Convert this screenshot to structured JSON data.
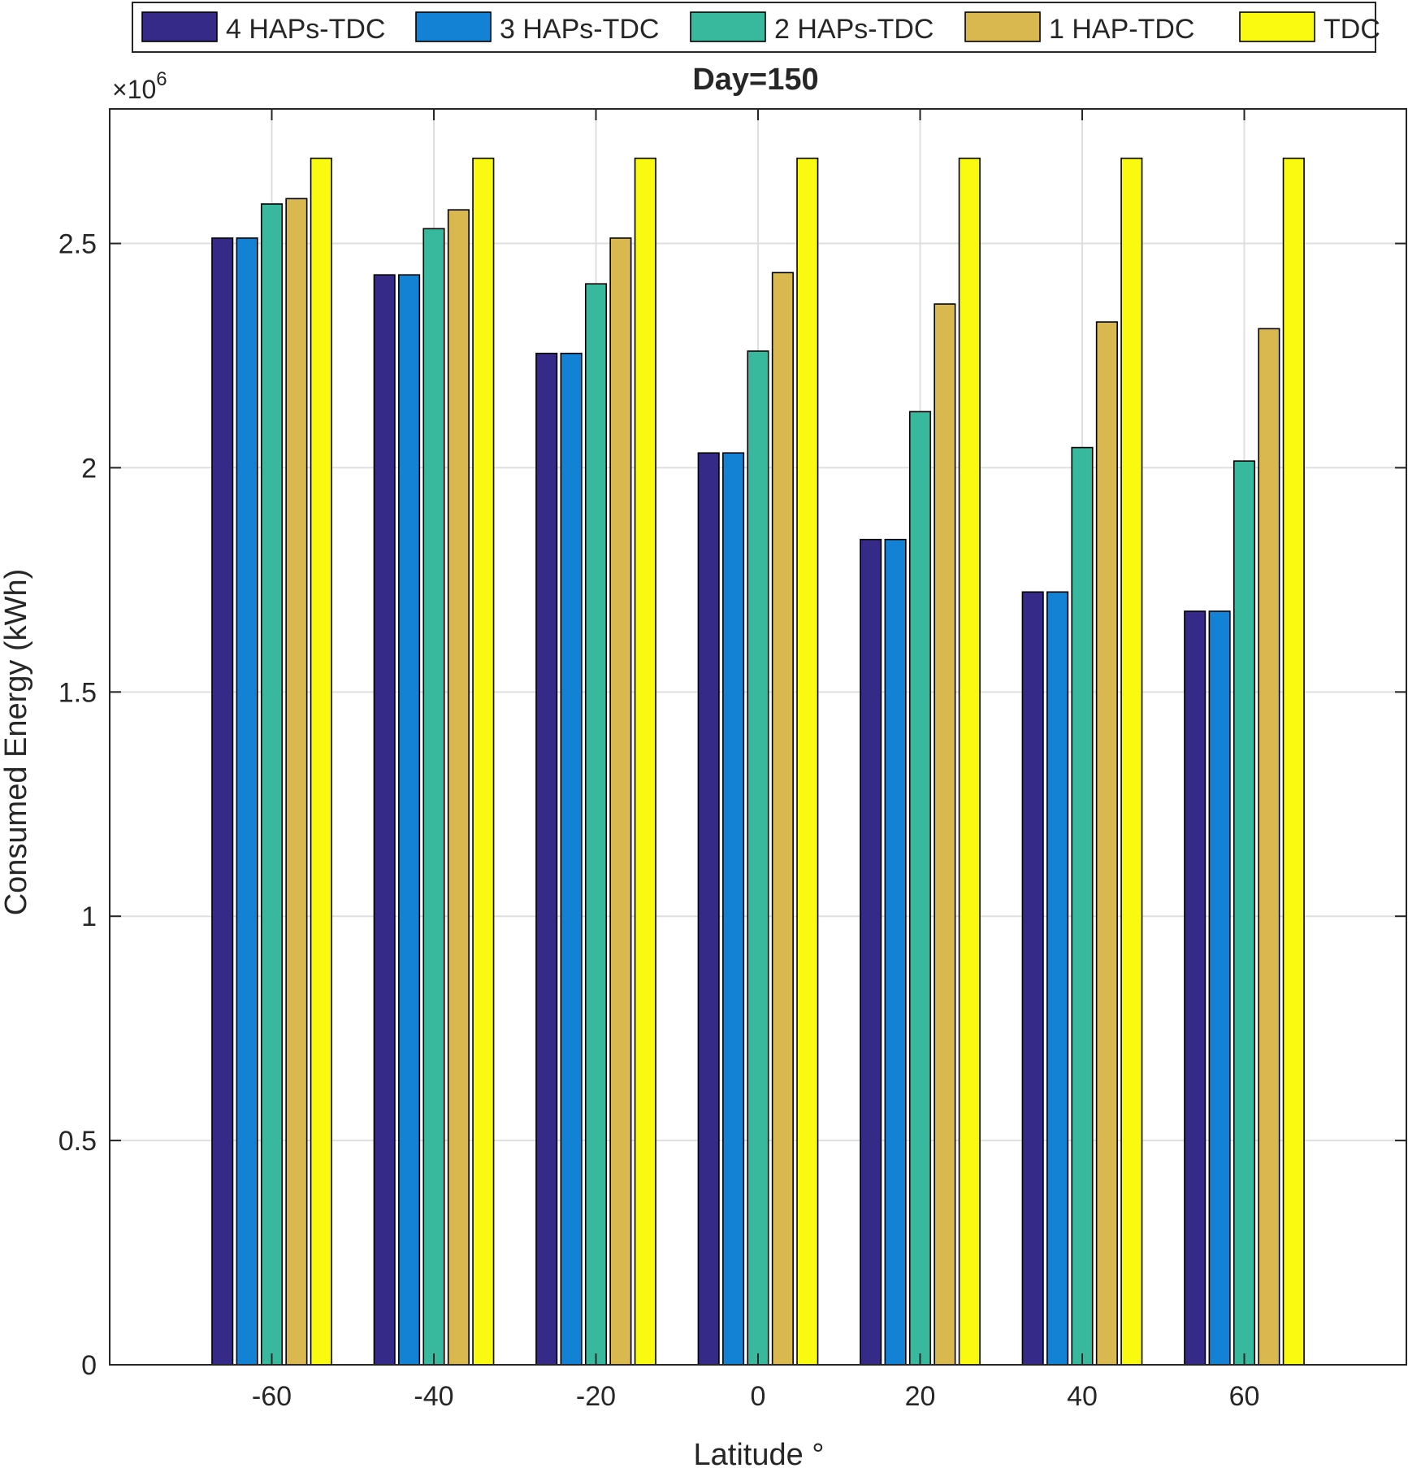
{
  "chart_data": {
    "type": "bar",
    "title": "Day=150",
    "xlabel": "Latitude °",
    "ylabel": "Consumed Energy (kWh)",
    "y_exponent_label": "×10",
    "y_exponent_power": "6",
    "y_scale": 1000000,
    "categories": [
      "-60",
      "-40",
      "-20",
      "0",
      "20",
      "40",
      "60"
    ],
    "x_values": [
      -60,
      -40,
      -20,
      0,
      20,
      40,
      60
    ],
    "xlim": [
      -80,
      80
    ],
    "ylim": [
      0,
      2800000
    ],
    "y_ticks": [
      0,
      0.5,
      1,
      1.5,
      2,
      2.5
    ],
    "y_tick_labels": [
      "0",
      "0.5",
      "1",
      "1.5",
      "2",
      "2.5"
    ],
    "grid": true,
    "legend_position": "top-outside",
    "series": [
      {
        "name": "4 HAPs-TDC",
        "color": "#352a87",
        "values": [
          2512000,
          2430000,
          2255000,
          2033000,
          1840000,
          1723000,
          1680000
        ]
      },
      {
        "name": "3 HAPs-TDC",
        "color": "#1482d4",
        "values": [
          2512000,
          2430000,
          2255000,
          2033000,
          1840000,
          1723000,
          1680000
        ]
      },
      {
        "name": "2 HAPs-TDC",
        "color": "#38b99e",
        "values": [
          2588000,
          2533000,
          2410000,
          2260000,
          2125000,
          2045000,
          2015000
        ]
      },
      {
        "name": "1 HAP-TDC",
        "color": "#d9b94f",
        "values": [
          2600000,
          2575000,
          2512000,
          2435000,
          2365000,
          2325000,
          2310000
        ]
      },
      {
        "name": "TDC",
        "color": "#f9fa0f",
        "values": [
          2690000,
          2690000,
          2690000,
          2690000,
          2690000,
          2690000,
          2690000
        ]
      }
    ]
  }
}
